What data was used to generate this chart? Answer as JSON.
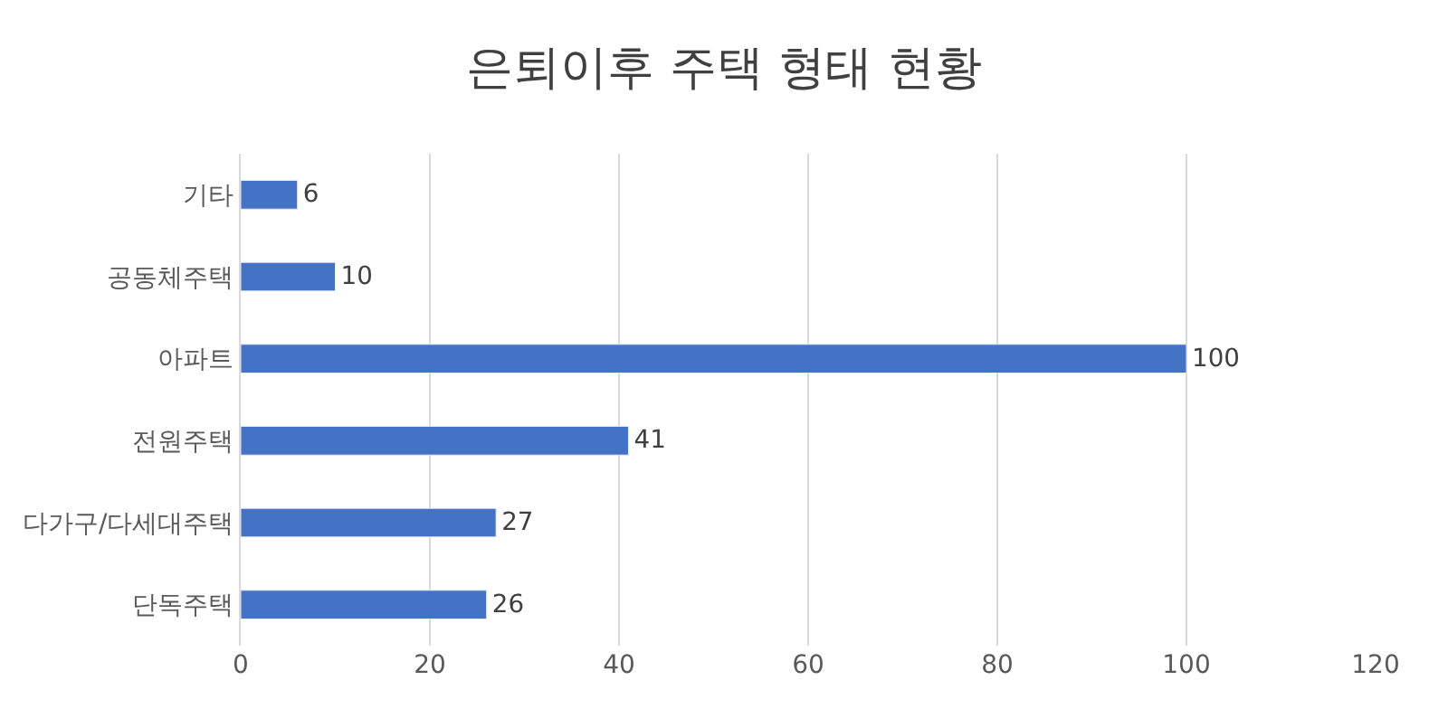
{
  "chart_data": {
    "type": "bar",
    "orientation": "horizontal",
    "title": "은퇴이후 주택 형태 현황",
    "categories": [
      "기타",
      "공동체주택",
      "아파트",
      "전원주택",
      "다가구/다세대주택",
      "단독주택"
    ],
    "values": [
      6,
      10,
      100,
      41,
      27,
      26
    ],
    "color": "#4472c4",
    "xlim": [
      0,
      120
    ],
    "xticks": [
      0,
      20,
      40,
      60,
      80,
      100,
      120
    ],
    "grid": "x",
    "data_labels": true
  }
}
